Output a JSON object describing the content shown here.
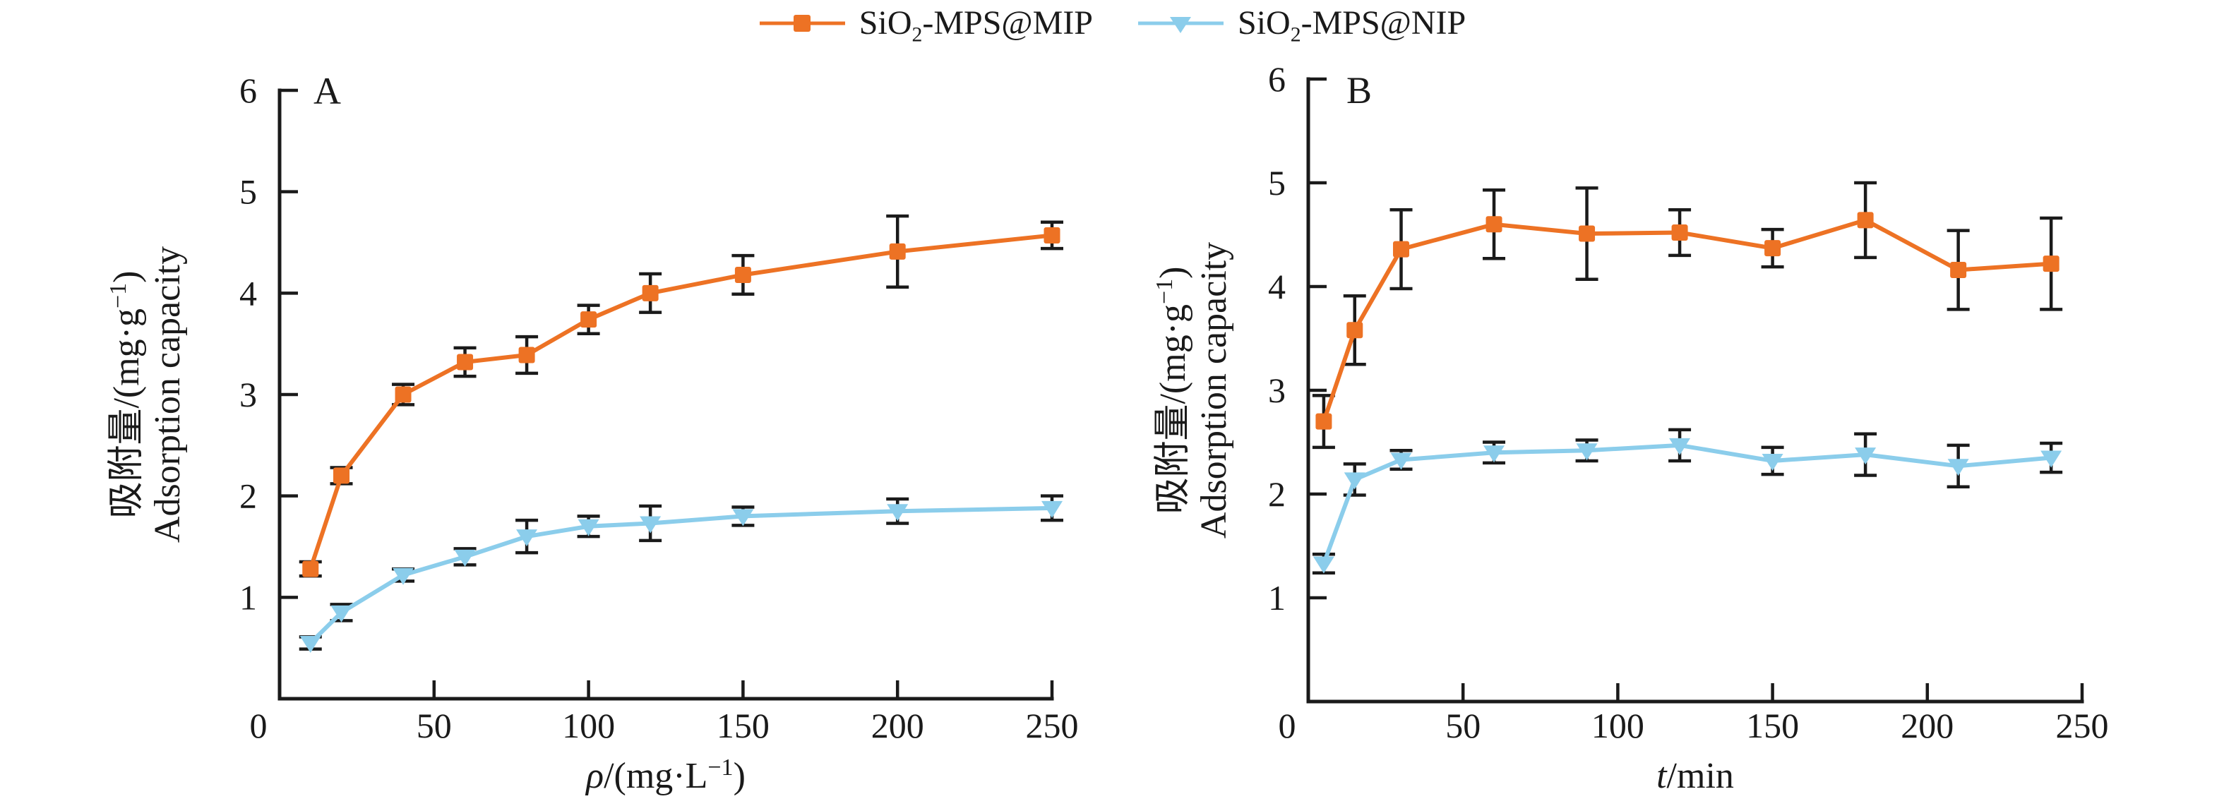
{
  "figure": {
    "panel_a_letter": "A",
    "panel_b_letter": "B",
    "axis_color": "#1a1a1a",
    "background": "#ffffff"
  },
  "legend": {
    "items": [
      {
        "label_pre": "SiO",
        "label_sub": "2",
        "label_rest": "-MPS@MIP",
        "marker": "square-icon",
        "color": "#ED7224"
      },
      {
        "label_pre": "SiO",
        "label_sub": "2",
        "label_rest": "-MPS@NIP",
        "marker": "triangle-down-icon",
        "color": "#8BCDEB"
      }
    ]
  },
  "chart_data": [
    {
      "type": "line",
      "panel": "A",
      "x": [
        10,
        20,
        40,
        60,
        80,
        100,
        120,
        150,
        200,
        250
      ],
      "xlim": [
        0,
        250
      ],
      "ylim": [
        0,
        6
      ],
      "x_ticks": [
        0,
        50,
        100,
        150,
        200,
        250
      ],
      "y_ticks": [
        0,
        1,
        2,
        3,
        4,
        5,
        6
      ],
      "grid": false,
      "legend_position": "top-center",
      "xlabel": {
        "var": "ρ",
        "mid": "/(mg·L",
        "sup": "−1",
        "end": ")"
      },
      "ylabel_line1": {
        "pre": "吸附量/(mg·g",
        "sup": "−1",
        "end": ")"
      },
      "ylabel_line2": "Adsorption capacity",
      "series": [
        {
          "name": "SiO2-MPS@MIP",
          "color": "#ED7224",
          "marker": "square",
          "values": [
            1.28,
            2.2,
            3.0,
            3.32,
            3.39,
            3.74,
            4.0,
            4.18,
            4.41,
            4.57
          ],
          "errors": [
            0.07,
            0.08,
            0.1,
            0.14,
            0.18,
            0.14,
            0.19,
            0.19,
            0.35,
            0.13
          ]
        },
        {
          "name": "SiO2-MPS@NIP",
          "color": "#8BCDEB",
          "marker": "triangle-down",
          "values": [
            0.55,
            0.85,
            1.22,
            1.4,
            1.6,
            1.7,
            1.73,
            1.8,
            1.85,
            1.88
          ],
          "errors": [
            0.06,
            0.08,
            0.06,
            0.08,
            0.16,
            0.1,
            0.17,
            0.09,
            0.12,
            0.12
          ]
        }
      ]
    },
    {
      "type": "line",
      "panel": "B",
      "x": [
        5,
        15,
        30,
        60,
        90,
        120,
        150,
        180,
        210,
        240
      ],
      "xlim": [
        0,
        250
      ],
      "ylim": [
        0,
        6
      ],
      "x_ticks": [
        0,
        50,
        100,
        150,
        200,
        250
      ],
      "y_ticks": [
        0,
        1,
        2,
        3,
        4,
        5,
        6
      ],
      "grid": false,
      "legend_position": "top-center",
      "xlabel": {
        "var": "t",
        "mid": "/min",
        "sup": "",
        "end": ""
      },
      "ylabel_line1": {
        "pre": "吸附量/(mg·g",
        "sup": "−1",
        "end": ")"
      },
      "ylabel_line2": "Adsorption capacity",
      "series": [
        {
          "name": "SiO2-MPS@MIP",
          "color": "#ED7224",
          "marker": "square",
          "values": [
            2.7,
            3.58,
            4.36,
            4.6,
            4.51,
            4.52,
            4.37,
            4.64,
            4.16,
            4.22
          ],
          "errors": [
            0.25,
            0.33,
            0.38,
            0.33,
            0.44,
            0.22,
            0.18,
            0.36,
            0.38,
            0.44
          ]
        },
        {
          "name": "SiO2-MPS@NIP",
          "color": "#8BCDEB",
          "marker": "triangle-down",
          "values": [
            1.33,
            2.14,
            2.33,
            2.4,
            2.42,
            2.47,
            2.32,
            2.38,
            2.27,
            2.35
          ],
          "errors": [
            0.09,
            0.15,
            0.09,
            0.1,
            0.1,
            0.15,
            0.13,
            0.2,
            0.2,
            0.14
          ]
        }
      ]
    }
  ]
}
